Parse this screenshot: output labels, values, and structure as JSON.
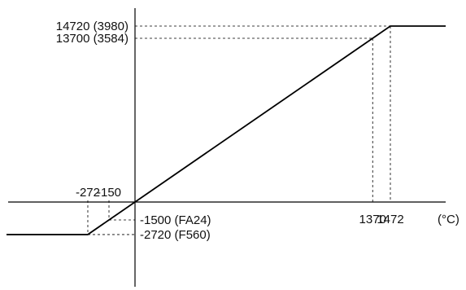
{
  "chart_data": {
    "type": "line",
    "xlabel": "(°C)",
    "ylabel": "",
    "xlim": [
      -272,
      1472
    ],
    "ylim": [
      -2720,
      14720
    ],
    "grid": false,
    "series": [
      {
        "x": [
          -272,
          -150,
          0,
          1370,
          1472
        ],
        "y": [
          -2720,
          -1500,
          0,
          13700,
          14720
        ]
      }
    ],
    "x_annotations": [
      {
        "x": -272,
        "label": "-272",
        "position": "above"
      },
      {
        "x": -150,
        "label": "-150",
        "position": "above"
      },
      {
        "x": 1370,
        "label": "1370",
        "position": "below"
      },
      {
        "x": 1472,
        "label": "1472",
        "position": "below"
      }
    ],
    "y_annotations": [
      {
        "y": 14720,
        "label": "14720 (3980)",
        "side": "left"
      },
      {
        "y": 13700,
        "label": "13700 (3584)",
        "side": "left"
      },
      {
        "y": -1500,
        "label": "-1500 (FA24)",
        "side": "right"
      },
      {
        "y": -2720,
        "label": "-2720 (F560)",
        "side": "right"
      }
    ]
  }
}
